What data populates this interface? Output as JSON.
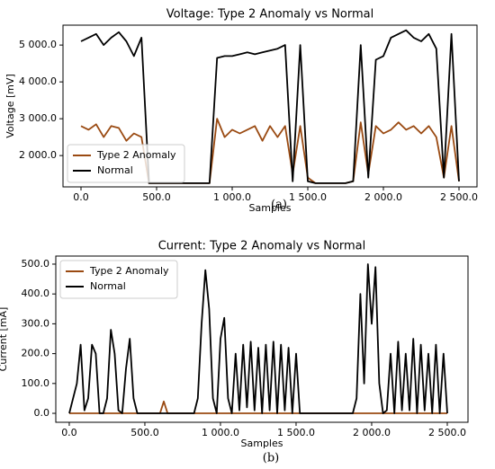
{
  "chart_data": [
    {
      "type": "line",
      "title": "Voltage: Type 2 Anomaly vs Normal",
      "xlabel": "Samples",
      "ylabel": "Voltage [mV]",
      "caption": "(a)",
      "legend": "lower left",
      "grid": false,
      "xlim": [
        -119,
        2619
      ],
      "ylim": [
        1150,
        5540
      ],
      "xticks": [
        {
          "value": 0,
          "label": "0.0"
        },
        {
          "value": 500,
          "label": "500.0"
        },
        {
          "value": 1000,
          "label": "1 000.0"
        },
        {
          "value": 1500,
          "label": "1 500.0"
        },
        {
          "value": 2000,
          "label": "2 000.0"
        },
        {
          "value": 2500,
          "label": "2 500.0"
        }
      ],
      "yticks": [
        {
          "value": 2000,
          "label": "2 000.0"
        },
        {
          "value": 3000,
          "label": "3 000.0"
        },
        {
          "value": 4000,
          "label": "4 000.0"
        },
        {
          "value": 5000,
          "label": "5 000.0"
        }
      ],
      "x": [
        0,
        50,
        100,
        150,
        200,
        250,
        300,
        350,
        400,
        450,
        500,
        550,
        600,
        650,
        700,
        750,
        800,
        850,
        900,
        950,
        1000,
        1050,
        1100,
        1150,
        1200,
        1250,
        1300,
        1350,
        1400,
        1450,
        1500,
        1550,
        1600,
        1650,
        1700,
        1750,
        1800,
        1850,
        1900,
        1950,
        2000,
        2050,
        2100,
        2150,
        2200,
        2250,
        2300,
        2350,
        2400,
        2450,
        2500
      ],
      "series": [
        {
          "name": "Type 2 Anomaly",
          "color": "#9a4a12",
          "values": [
            2800,
            2700,
            2850,
            2500,
            2800,
            2750,
            2400,
            2600,
            2500,
            1250,
            1250,
            1250,
            1250,
            1250,
            1250,
            1250,
            1250,
            1250,
            3000,
            2500,
            2700,
            2600,
            2700,
            2800,
            2400,
            2800,
            2500,
            2800,
            1500,
            2800,
            1400,
            1250,
            1250,
            1250,
            1250,
            1250,
            1300,
            2900,
            1500,
            2800,
            2600,
            2700,
            2900,
            2700,
            2800,
            2600,
            2800,
            2500,
            1400,
            2800,
            1300
          ]
        },
        {
          "name": "Normal",
          "color": "#000000",
          "values": [
            5100,
            5200,
            5300,
            5000,
            5200,
            5350,
            5100,
            4700,
            5200,
            1250,
            1250,
            1250,
            1250,
            1250,
            1250,
            1250,
            1250,
            1250,
            4650,
            4700,
            4700,
            4750,
            4800,
            4750,
            4800,
            4850,
            4900,
            5000,
            1300,
            5000,
            1300,
            1250,
            1250,
            1250,
            1250,
            1250,
            1300,
            5000,
            1400,
            4600,
            4700,
            5200,
            5300,
            5400,
            5200,
            5100,
            5300,
            4900,
            1400,
            5300,
            1300
          ]
        }
      ]
    },
    {
      "type": "line",
      "title": "Current: Type 2 Anomaly vs Normal",
      "xlabel": "Samples",
      "ylabel": "Current [mA]",
      "caption": "(b)",
      "legend": "upper left",
      "grid": false,
      "xlim": [
        -89,
        2637
      ],
      "ylim": [
        -30,
        527
      ],
      "xticks": [
        {
          "value": 0,
          "label": "0.0"
        },
        {
          "value": 500,
          "label": "500.0"
        },
        {
          "value": 1000,
          "label": "1 000.0"
        },
        {
          "value": 1500,
          "label": "1 500.0"
        },
        {
          "value": 2000,
          "label": "2 000.0"
        },
        {
          "value": 2500,
          "label": "2 500.0"
        }
      ],
      "yticks": [
        {
          "value": 0,
          "label": "0.0"
        },
        {
          "value": 100,
          "label": "100.0"
        },
        {
          "value": 200,
          "label": "200.0"
        },
        {
          "value": 300,
          "label": "300.0"
        },
        {
          "value": 400,
          "label": "400.0"
        },
        {
          "value": 500,
          "label": "500.0"
        }
      ],
      "x": [
        0,
        25,
        50,
        75,
        100,
        125,
        150,
        175,
        200,
        225,
        250,
        275,
        300,
        325,
        350,
        375,
        400,
        425,
        450,
        475,
        500,
        525,
        550,
        575,
        600,
        625,
        650,
        675,
        700,
        725,
        750,
        775,
        800,
        825,
        850,
        875,
        900,
        925,
        950,
        975,
        1000,
        1025,
        1050,
        1075,
        1100,
        1125,
        1150,
        1175,
        1200,
        1225,
        1250,
        1275,
        1300,
        1325,
        1350,
        1375,
        1400,
        1425,
        1450,
        1475,
        1500,
        1525,
        1550,
        1575,
        1600,
        1625,
        1650,
        1675,
        1700,
        1725,
        1750,
        1775,
        1800,
        1825,
        1850,
        1875,
        1900,
        1925,
        1950,
        1975,
        2000,
        2025,
        2050,
        2075,
        2100,
        2125,
        2150,
        2175,
        2200,
        2225,
        2250,
        2275,
        2300,
        2325,
        2350,
        2375,
        2400,
        2425,
        2450,
        2475,
        2500
      ],
      "series": [
        {
          "name": "Type 2 Anomaly",
          "color": "#9a4a12",
          "values": [
            0,
            0,
            0,
            0,
            0,
            0,
            0,
            0,
            0,
            0,
            0,
            0,
            0,
            0,
            0,
            0,
            0,
            0,
            0,
            0,
            0,
            0,
            0,
            0,
            0,
            40,
            0,
            0,
            0,
            0,
            0,
            0,
            0,
            0,
            0,
            0,
            0,
            0,
            0,
            0,
            0,
            0,
            0,
            0,
            0,
            0,
            0,
            0,
            0,
            0,
            0,
            0,
            0,
            0,
            0,
            0,
            0,
            0,
            0,
            0,
            0,
            0,
            0,
            0,
            0,
            0,
            0,
            0,
            0,
            0,
            0,
            0,
            0,
            0,
            0,
            0,
            0,
            0,
            0,
            0,
            0,
            0,
            0,
            0,
            0,
            0,
            0,
            0,
            0,
            0,
            0,
            0,
            0,
            0,
            0,
            0,
            0,
            0,
            0,
            0,
            0
          ]
        },
        {
          "name": "Normal",
          "color": "#000000",
          "values": [
            0,
            50,
            100,
            230,
            10,
            50,
            230,
            200,
            0,
            0,
            50,
            280,
            200,
            10,
            0,
            150,
            250,
            50,
            0,
            0,
            0,
            0,
            0,
            0,
            0,
            0,
            0,
            0,
            0,
            0,
            0,
            0,
            0,
            0,
            50,
            300,
            480,
            350,
            50,
            0,
            250,
            320,
            50,
            0,
            200,
            10,
            230,
            20,
            240,
            10,
            220,
            0,
            230,
            10,
            240,
            0,
            230,
            10,
            220,
            0,
            200,
            0,
            0,
            0,
            0,
            0,
            0,
            0,
            0,
            0,
            0,
            0,
            0,
            0,
            0,
            0,
            50,
            400,
            100,
            500,
            300,
            490,
            100,
            0,
            10,
            200,
            0,
            240,
            10,
            200,
            10,
            250,
            0,
            230,
            10,
            200,
            0,
            230,
            0,
            200,
            0
          ]
        }
      ]
    }
  ]
}
